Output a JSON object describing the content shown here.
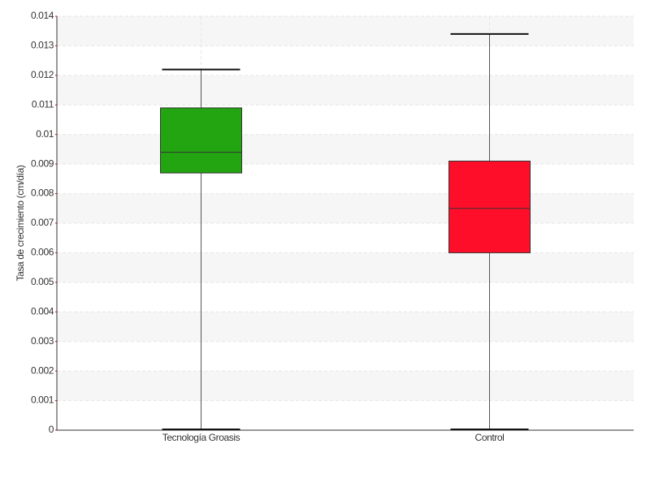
{
  "chart_data": {
    "type": "box",
    "y_label": "Tasa de crecimiento (cm/día)",
    "categories": [
      "Tecnología Groasis",
      "Control"
    ],
    "boxes": [
      {
        "min": 0,
        "q1": 0.0087,
        "median": 0.0094,
        "q3": 0.0109,
        "max": 0.0122,
        "color": "#22a511"
      },
      {
        "min": 0,
        "q1": 0.006,
        "median": 0.0075,
        "q3": 0.0091,
        "max": 0.0134,
        "color": "#ff0e2a"
      }
    ],
    "ylim": [
      0,
      0.014
    ],
    "yticks": [
      0,
      0.001,
      0.002,
      0.003,
      0.004,
      0.005,
      0.006,
      0.007,
      0.008,
      0.009,
      0.01,
      0.011,
      0.012,
      0.013,
      0.014
    ],
    "grid": true
  }
}
